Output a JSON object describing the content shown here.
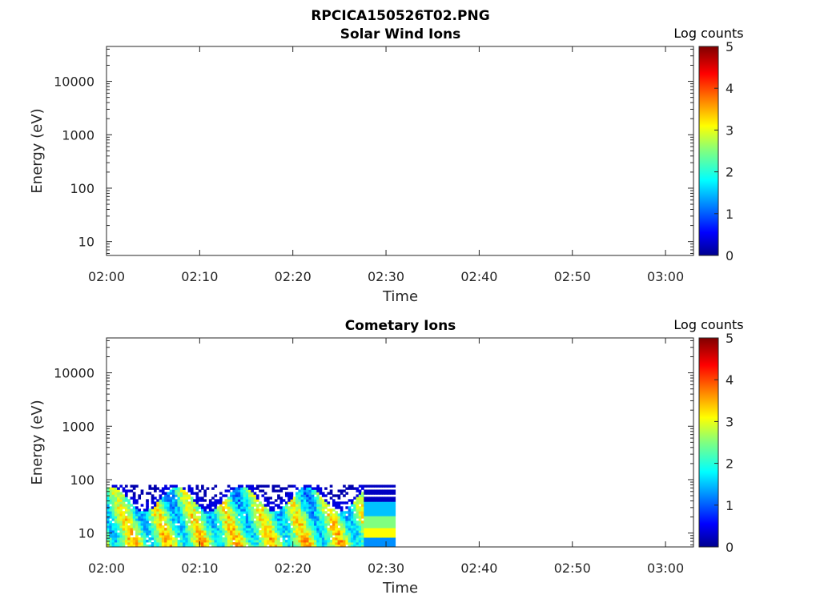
{
  "figure_title": "RPCICA150526T02.PNG",
  "chart_data": [
    {
      "type": "heatmap",
      "title": "Solar Wind Ions",
      "xlabel": "Time",
      "ylabel": "Energy (eV)",
      "x_ticks": [
        "02:00",
        "02:10",
        "02:20",
        "02:30",
        "02:40",
        "02:50",
        "03:00"
      ],
      "y_ticks": [
        "10",
        "100",
        "1000",
        "10000"
      ],
      "y_scale": "log",
      "ylim": [
        5.5,
        45000
      ],
      "xlim": [
        "02:00",
        "03:03"
      ],
      "colorbar": {
        "label": "Log counts",
        "ticks": [
          "0",
          "1",
          "2",
          "3",
          "4",
          "5"
        ],
        "range": [
          0,
          5
        ],
        "colormap": "jet"
      },
      "data_extent": null
    },
    {
      "type": "heatmap",
      "title": "Cometary Ions",
      "xlabel": "Time",
      "ylabel": "Energy (eV)",
      "x_ticks": [
        "02:00",
        "02:10",
        "02:20",
        "02:30",
        "02:40",
        "02:50",
        "03:00"
      ],
      "y_ticks": [
        "10",
        "100",
        "1000",
        "10000"
      ],
      "y_scale": "log",
      "ylim": [
        5.5,
        45000
      ],
      "xlim": [
        "02:00",
        "03:03"
      ],
      "colorbar": {
        "label": "Log counts",
        "ticks": [
          "0",
          "1",
          "2",
          "3",
          "4",
          "5"
        ],
        "range": [
          0,
          5
        ],
        "colormap": "jet"
      },
      "data_extent": {
        "time_start": "02:00",
        "time_end": "02:31",
        "energy_min": 5.5,
        "energy_max": 80,
        "typical_log_counts": [
          1.5,
          2.5
        ],
        "peak_log_counts": 3.5
      }
    }
  ]
}
